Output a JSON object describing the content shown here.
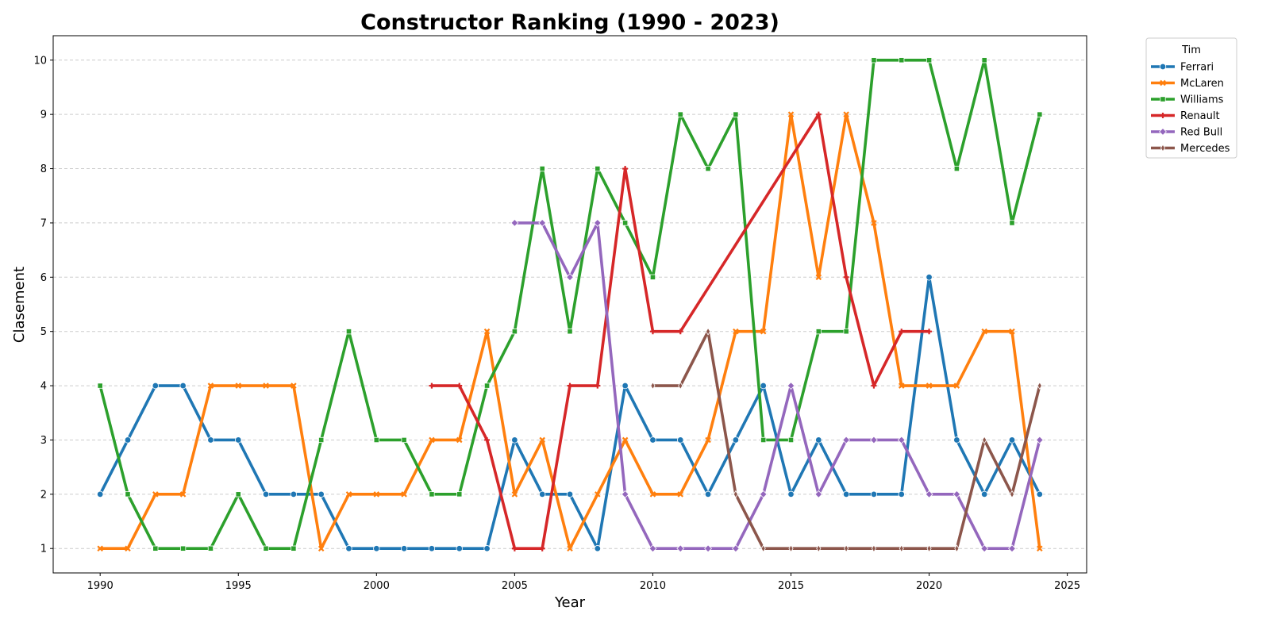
{
  "chart_data": {
    "type": "line",
    "title": "Constructor Ranking (1990 - 2023)",
    "xlabel": "Year",
    "ylabel": "Clasement",
    "xlim": [
      1988.3,
      2025.7
    ],
    "ylim": [
      10.45,
      0.55
    ],
    "x_ticks": [
      1990,
      1995,
      2000,
      2005,
      2010,
      2015,
      2020,
      2025
    ],
    "y_ticks": [
      1,
      2,
      3,
      4,
      5,
      6,
      7,
      8,
      9,
      10
    ],
    "y_inverted": true,
    "grid": "horizontal-dashed",
    "legend": {
      "title": "Tim",
      "placement": "outside-top-right"
    },
    "series": [
      {
        "name": "Ferrari",
        "color": "#1f77b4",
        "marker": "circle",
        "x": [
          1990,
          1991,
          1992,
          1993,
          1994,
          1995,
          1996,
          1997,
          1998,
          1999,
          2000,
          2001,
          2002,
          2003,
          2004,
          2005,
          2006,
          2007,
          2008,
          2009,
          2010,
          2011,
          2012,
          2013,
          2014,
          2015,
          2016,
          2017,
          2018,
          2019,
          2020,
          2021,
          2022,
          2023,
          2024
        ],
        "y": [
          2,
          3,
          4,
          4,
          3,
          3,
          2,
          2,
          2,
          1,
          1,
          1,
          1,
          1,
          1,
          3,
          2,
          2,
          1,
          4,
          3,
          3,
          2,
          3,
          4,
          2,
          3,
          2,
          2,
          2,
          6,
          3,
          2,
          3,
          2
        ]
      },
      {
        "name": "McLaren",
        "color": "#ff7f0e",
        "marker": "x",
        "x": [
          1990,
          1991,
          1992,
          1993,
          1994,
          1995,
          1996,
          1997,
          1998,
          1999,
          2000,
          2001,
          2002,
          2003,
          2004,
          2005,
          2006,
          2007,
          2008,
          2009,
          2010,
          2011,
          2012,
          2013,
          2014,
          2015,
          2016,
          2017,
          2018,
          2019,
          2020,
          2021,
          2022,
          2023,
          2024
        ],
        "y": [
          1,
          1,
          2,
          2,
          4,
          4,
          4,
          4,
          1,
          2,
          2,
          2,
          3,
          3,
          5,
          2,
          3,
          1,
          2,
          3,
          2,
          2,
          3,
          5,
          5,
          9,
          6,
          9,
          7,
          4,
          4,
          4,
          5,
          5,
          1
        ]
      },
      {
        "name": "Williams",
        "color": "#2ca02c",
        "marker": "square",
        "x": [
          1990,
          1991,
          1992,
          1993,
          1994,
          1995,
          1996,
          1997,
          1998,
          1999,
          2000,
          2001,
          2002,
          2003,
          2004,
          2005,
          2006,
          2007,
          2008,
          2009,
          2010,
          2011,
          2012,
          2013,
          2014,
          2015,
          2016,
          2017,
          2018,
          2019,
          2020,
          2021,
          2022,
          2023,
          2024
        ],
        "y": [
          4,
          2,
          1,
          1,
          1,
          2,
          1,
          1,
          3,
          5,
          3,
          3,
          2,
          2,
          4,
          5,
          8,
          5,
          8,
          7,
          6,
          9,
          8,
          9,
          3,
          3,
          5,
          5,
          10,
          10,
          10,
          8,
          10,
          7,
          9
        ]
      },
      {
        "name": "Renault",
        "color": "#d62728",
        "marker": "plus",
        "x": [
          2002,
          2003,
          2004,
          2005,
          2006,
          2007,
          2008,
          2009,
          2010,
          2011,
          2016,
          2017,
          2018,
          2019,
          2020
        ],
        "y": [
          4,
          4,
          3,
          1,
          1,
          4,
          4,
          8,
          5,
          5,
          9,
          6,
          4,
          5,
          5
        ]
      },
      {
        "name": "Red Bull",
        "color": "#9467bd",
        "marker": "diamond",
        "x": [
          2005,
          2006,
          2007,
          2008,
          2009,
          2010,
          2011,
          2012,
          2013,
          2014,
          2015,
          2016,
          2017,
          2018,
          2019,
          2020,
          2021,
          2022,
          2023,
          2024
        ],
        "y": [
          7,
          7,
          6,
          7,
          2,
          1,
          1,
          1,
          1,
          2,
          4,
          2,
          3,
          3,
          3,
          2,
          2,
          1,
          1,
          3
        ]
      },
      {
        "name": "Mercedes",
        "color": "#8c564b",
        "marker": "diamond-thin",
        "x": [
          2010,
          2011,
          2012,
          2013,
          2014,
          2015,
          2016,
          2017,
          2018,
          2019,
          2020,
          2021,
          2022,
          2023,
          2024
        ],
        "y": [
          4,
          4,
          5,
          2,
          1,
          1,
          1,
          1,
          1,
          1,
          1,
          1,
          3,
          2,
          4
        ]
      }
    ]
  }
}
